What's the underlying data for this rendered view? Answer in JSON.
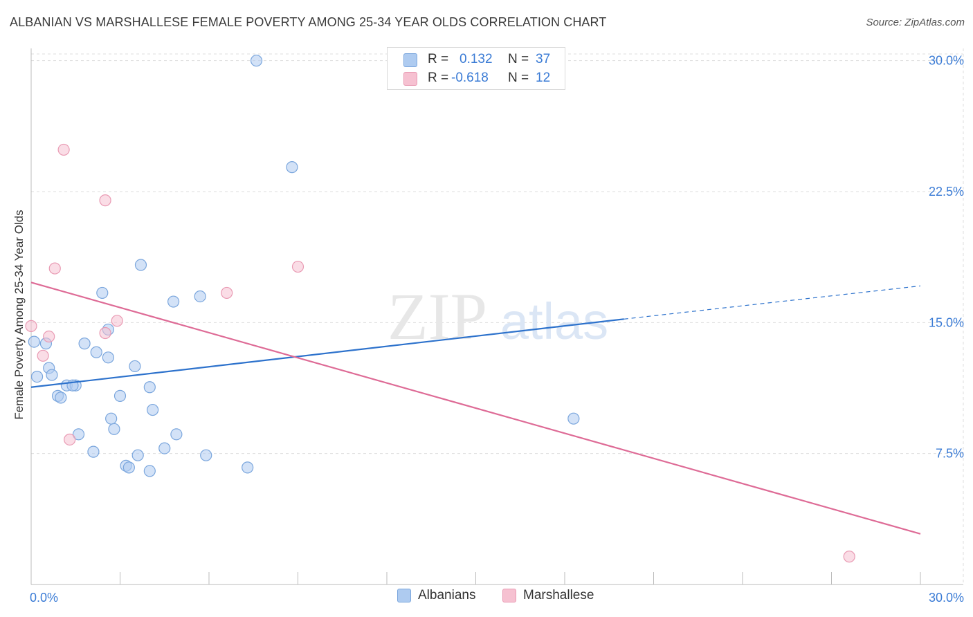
{
  "title": "ALBANIAN VS MARSHALLESE FEMALE POVERTY AMONG 25-34 YEAR OLDS CORRELATION CHART",
  "source": "Source: ZipAtlas.com",
  "watermark": {
    "zip": "ZIP",
    "atlas": "atlas"
  },
  "stats_legend": {
    "albanians": {
      "r_label": "R =",
      "r_value": "0.132",
      "n_label": "N =",
      "n_value": "37"
    },
    "marshallese": {
      "r_label": "R =",
      "r_value": "-0.618",
      "n_label": "N =",
      "n_value": "12"
    }
  },
  "colors": {
    "albanians_fill": "#aecbf0",
    "albanians_stroke": "#7aa6dd",
    "albanians_line": "#2d72cc",
    "marshallese_fill": "#f6c1d1",
    "marshallese_stroke": "#e99ab3",
    "marshallese_line": "#de6b96",
    "tick_label": "#3a7bd5",
    "grid": "#dddddd"
  },
  "chart_data": {
    "type": "scatter",
    "title": "ALBANIAN VS MARSHALLESE FEMALE POVERTY AMONG 25-34 YEAR OLDS CORRELATION CHART",
    "xlabel": "",
    "ylabel": "Female Poverty Among 25-34 Year Olds",
    "xlim": [
      0,
      30
    ],
    "ylim": [
      0,
      30.7
    ],
    "x_tick_labels": [
      {
        "value": 0,
        "label": "0.0%"
      },
      {
        "value": 30,
        "label": "30.0%"
      }
    ],
    "y_tick_labels": [
      {
        "value": 7.5,
        "label": "7.5%"
      },
      {
        "value": 15,
        "label": "15.0%"
      },
      {
        "value": 22.5,
        "label": "22.5%"
      },
      {
        "value": 30,
        "label": "30.0%"
      }
    ],
    "x_minor_ticks": [
      3,
      6,
      9,
      12,
      15,
      18,
      21,
      24,
      27,
      30
    ],
    "grid": true,
    "legend": "bottom-center",
    "series": [
      {
        "name": "Albanians",
        "color": "#aecbf0",
        "points": [
          {
            "x": 7.6,
            "y": 30.0
          },
          {
            "x": 8.8,
            "y": 23.9
          },
          {
            "x": 3.7,
            "y": 18.3
          },
          {
            "x": 2.4,
            "y": 16.7
          },
          {
            "x": 4.8,
            "y": 16.2
          },
          {
            "x": 5.7,
            "y": 16.5
          },
          {
            "x": 2.6,
            "y": 14.6
          },
          {
            "x": 0.1,
            "y": 13.9
          },
          {
            "x": 0.5,
            "y": 13.8
          },
          {
            "x": 1.8,
            "y": 13.8
          },
          {
            "x": 2.2,
            "y": 13.3
          },
          {
            "x": 2.6,
            "y": 13.0
          },
          {
            "x": 0.6,
            "y": 12.4
          },
          {
            "x": 3.5,
            "y": 12.5
          },
          {
            "x": 0.7,
            "y": 12.0
          },
          {
            "x": 0.2,
            "y": 11.9
          },
          {
            "x": 1.2,
            "y": 11.4
          },
          {
            "x": 1.5,
            "y": 11.4
          },
          {
            "x": 1.4,
            "y": 11.4
          },
          {
            "x": 4.0,
            "y": 11.3
          },
          {
            "x": 0.9,
            "y": 10.8
          },
          {
            "x": 1.0,
            "y": 10.7
          },
          {
            "x": 3.0,
            "y": 10.8
          },
          {
            "x": 4.1,
            "y": 10.0
          },
          {
            "x": 2.7,
            "y": 9.5
          },
          {
            "x": 2.8,
            "y": 8.9
          },
          {
            "x": 1.6,
            "y": 8.6
          },
          {
            "x": 4.9,
            "y": 8.6
          },
          {
            "x": 18.3,
            "y": 9.5
          },
          {
            "x": 4.5,
            "y": 7.8
          },
          {
            "x": 2.1,
            "y": 7.6
          },
          {
            "x": 3.6,
            "y": 7.4
          },
          {
            "x": 5.9,
            "y": 7.4
          },
          {
            "x": 3.2,
            "y": 6.8
          },
          {
            "x": 3.3,
            "y": 6.7
          },
          {
            "x": 4.0,
            "y": 6.5
          },
          {
            "x": 7.3,
            "y": 6.7
          }
        ],
        "trend": {
          "x_solid": [
            0,
            20
          ],
          "y_solid": [
            11.3,
            15.2
          ],
          "x_dashed_end": 30,
          "y_dashed_end": 17.1
        }
      },
      {
        "name": "Marshallese",
        "color": "#f6c1d1",
        "points": [
          {
            "x": 1.1,
            "y": 24.9
          },
          {
            "x": 2.5,
            "y": 22.0
          },
          {
            "x": 0.8,
            "y": 18.1
          },
          {
            "x": 9.0,
            "y": 18.2
          },
          {
            "x": 6.6,
            "y": 16.7
          },
          {
            "x": 2.9,
            "y": 15.1
          },
          {
            "x": 0.0,
            "y": 14.8
          },
          {
            "x": 2.5,
            "y": 14.4
          },
          {
            "x": 0.6,
            "y": 14.2
          },
          {
            "x": 0.4,
            "y": 13.1
          },
          {
            "x": 1.3,
            "y": 8.3
          },
          {
            "x": 27.6,
            "y": 1.6
          }
        ],
        "trend": {
          "x_solid": [
            0,
            30
          ],
          "y_solid": [
            17.3,
            2.9
          ]
        }
      }
    ]
  },
  "bottom_legend": [
    {
      "label": "Albanians"
    },
    {
      "label": "Marshallese"
    }
  ]
}
